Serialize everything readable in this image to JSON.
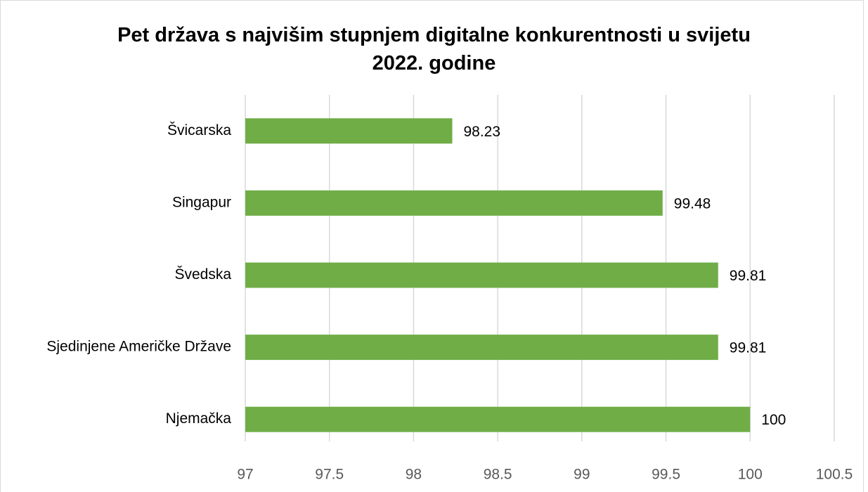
{
  "chart_data": {
    "type": "bar",
    "orientation": "horizontal",
    "title": "Pet država s najvišim stupnjem digitalne konkurentnosti u svijetu 2022. godine",
    "categories": [
      "Švicarska",
      "Singapur",
      "Švedska",
      "Sjedinjene Američke Države",
      "Njemačka"
    ],
    "values": [
      98.23,
      99.48,
      99.81,
      99.81,
      100
    ],
    "color": "#70ad47",
    "xlim": [
      97,
      100.5
    ],
    "xticks": [
      97,
      97.5,
      98,
      98.5,
      99,
      99.5,
      100,
      100.5
    ],
    "grid": true
  }
}
